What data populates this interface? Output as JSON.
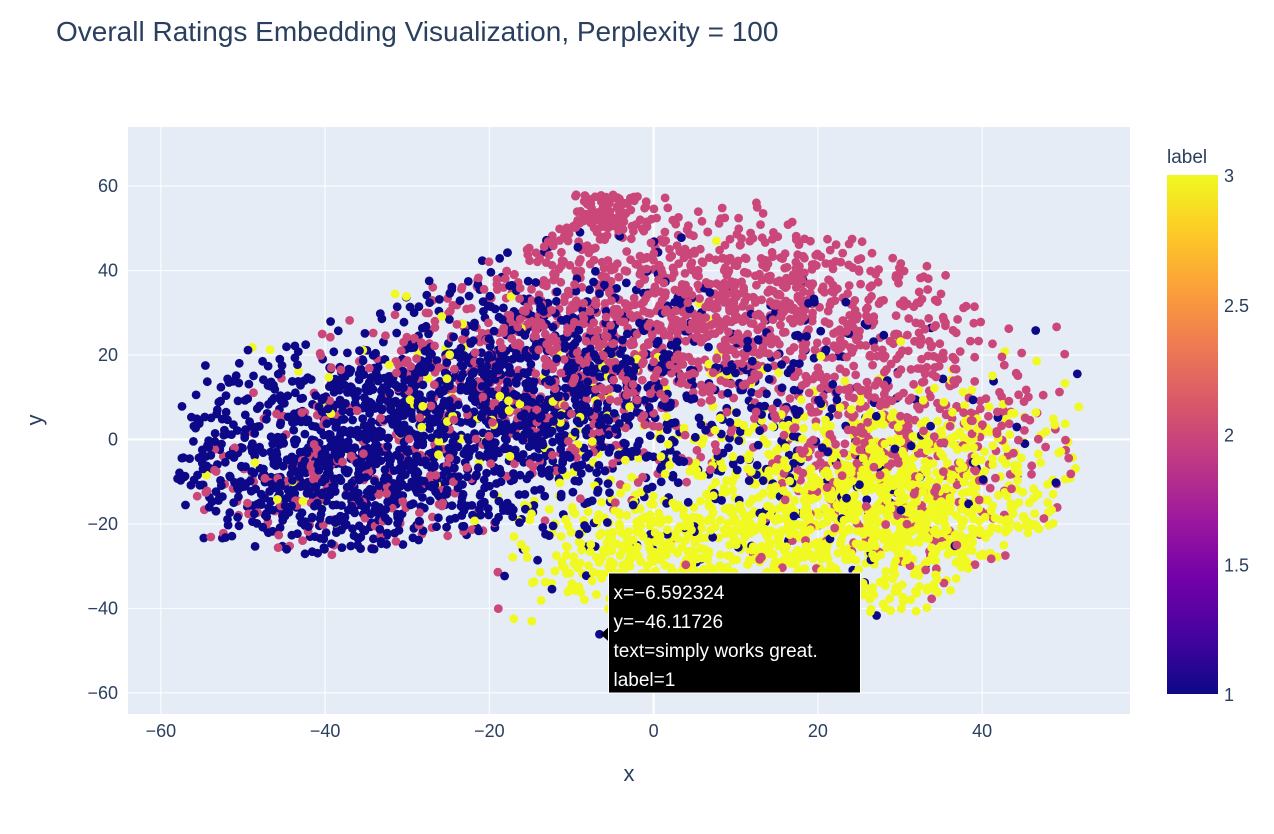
{
  "chart_data": {
    "type": "scatter",
    "title": "Overall Ratings Embedding Visualization, Perplexity = 100",
    "xlabel": "x",
    "ylabel": "y",
    "xlim": [
      -64,
      58
    ],
    "ylim": [
      -65,
      74
    ],
    "x_ticks": [
      -60,
      -40,
      -20,
      0,
      20,
      40
    ],
    "y_ticks": [
      -60,
      -40,
      -20,
      0,
      20,
      40,
      60
    ],
    "x_tick_labels": [
      "−60",
      "−40",
      "−20",
      "0",
      "20",
      "40"
    ],
    "y_tick_labels": [
      "−60",
      "−40",
      "−20",
      "0",
      "20",
      "40",
      "60"
    ],
    "grid": true,
    "colorbar": {
      "title": "label",
      "min": 1,
      "max": 3,
      "ticks": [
        1,
        1.5,
        2,
        2.5,
        3
      ],
      "tick_labels": [
        "1",
        "1.5",
        "2",
        "2.5",
        "3"
      ],
      "colorscale": [
        "#0d0887",
        "#46039f",
        "#7201a8",
        "#9c179e",
        "#bd3786",
        "#d8576b",
        "#ed7953",
        "#fb9f3a",
        "#fdca26",
        "#f0f921"
      ]
    },
    "clusters": [
      {
        "label": 1,
        "center": [
          -38,
          -5
        ],
        "spread": [
          11,
          13
        ],
        "count": 1000
      },
      {
        "label": 1,
        "center": [
          -15,
          12
        ],
        "spread": [
          10,
          14
        ],
        "count": 900
      },
      {
        "label": 1,
        "center": [
          10,
          5
        ],
        "spread": [
          15,
          18
        ],
        "count": 350
      },
      {
        "label": 2,
        "center": [
          -10,
          20
        ],
        "spread": [
          14,
          14
        ],
        "count": 700
      },
      {
        "label": 2,
        "center": [
          12,
          32
        ],
        "spread": [
          12,
          11
        ],
        "count": 700
      },
      {
        "label": 2,
        "center": [
          30,
          0
        ],
        "spread": [
          10,
          15
        ],
        "count": 450
      },
      {
        "label": 2,
        "center": [
          -38,
          -10
        ],
        "spread": [
          10,
          11
        ],
        "count": 160
      },
      {
        "label": 2,
        "center": [
          -6,
          56
        ],
        "spread": [
          3,
          5
        ],
        "count": 120
      },
      {
        "label": 3,
        "center": [
          28,
          -15
        ],
        "spread": [
          11,
          13
        ],
        "count": 1100
      },
      {
        "label": 3,
        "center": [
          5,
          -28
        ],
        "spread": [
          10,
          8
        ],
        "count": 500
      },
      {
        "label": 3,
        "center": [
          -12,
          5
        ],
        "spread": [
          16,
          15
        ],
        "count": 150
      }
    ],
    "hover": {
      "point": [
        -6.592324,
        -46.11726
      ],
      "label": 1,
      "lines": [
        "x=−6.592324",
        "y=−46.11726",
        "text=simply works great.",
        "label=1"
      ]
    }
  }
}
